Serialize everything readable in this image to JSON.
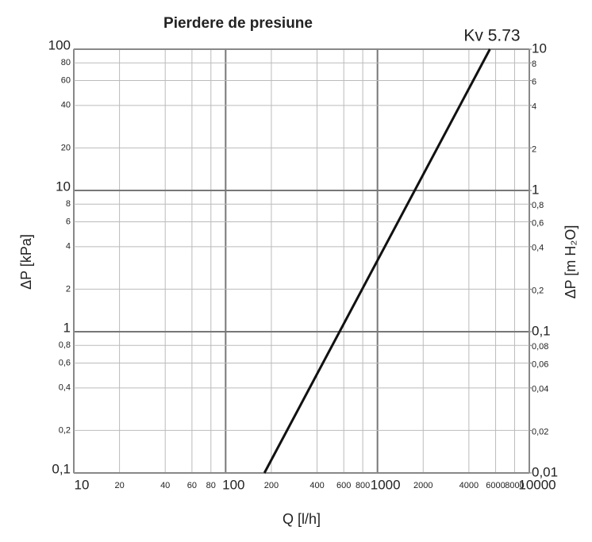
{
  "chart_data": {
    "type": "line",
    "title": "Pierdere de presiune",
    "annotation": "Kv 5.73",
    "x_label": "Q  [l/h]",
    "y_label": "ΔP  [kPa]",
    "y2_label": "ΔP  [m H₂O]",
    "log_x": true,
    "log_y": true,
    "grid": true,
    "x": [
      180,
      5500
    ],
    "series": [
      {
        "name": "Kv 5.73",
        "color": "#111111",
        "values": [
          0.1,
          100
        ]
      }
    ],
    "xlim": [
      10,
      10000
    ],
    "xticks": [
      10,
      20,
      40,
      60,
      80,
      100,
      200,
      400,
      600,
      800,
      1000,
      2000,
      4000,
      6000,
      8000,
      10000
    ],
    "ylim": [
      0.1,
      100
    ],
    "yticks": [
      {
        "value": 0.1,
        "label": "0,1"
      },
      {
        "value": 0.2,
        "label": "0,2"
      },
      {
        "value": 0.4,
        "label": "0,4"
      },
      {
        "value": 0.6,
        "label": "0,6"
      },
      {
        "value": 0.8,
        "label": "0,8"
      },
      1,
      2,
      4,
      6,
      8,
      10,
      20,
      40,
      60,
      80,
      100
    ],
    "y2lim": [
      0.01,
      10
    ],
    "y2ticks": [
      {
        "value": 0.01,
        "label": "0,01"
      },
      {
        "value": 0.02,
        "label": "0,02"
      },
      {
        "value": 0.04,
        "label": "0,04"
      },
      {
        "value": 0.06,
        "label": "0,06"
      },
      {
        "value": 0.08,
        "label": "0,08"
      },
      {
        "value": 0.1,
        "label": "0,1"
      },
      {
        "value": 0.2,
        "label": "0,2"
      },
      {
        "value": 0.4,
        "label": "0,4"
      },
      {
        "value": 0.6,
        "label": "0,6"
      },
      {
        "value": 0.8,
        "label": "0,8"
      },
      1,
      2,
      4,
      6,
      8,
      10
    ]
  }
}
